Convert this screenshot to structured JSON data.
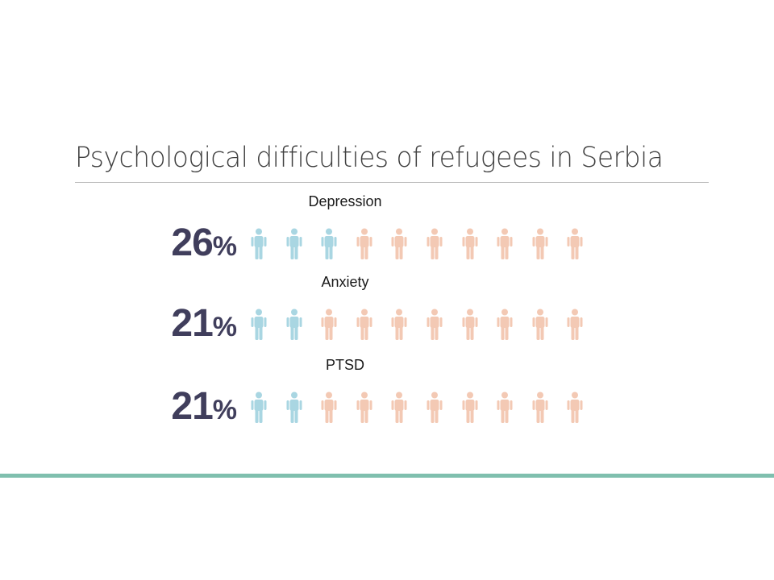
{
  "slide": {
    "title": "Psychological difficulties of refugees in Serbia"
  },
  "colors": {
    "highlight_person": "#a9d6e2",
    "base_person": "#f3c9b4",
    "percent_text": "#403e5c",
    "accent_line": "#7fbfae"
  },
  "chart_data": {
    "type": "pictograph",
    "title": "Psychological difficulties of refugees in Serbia",
    "icons_per_row": 10,
    "icon": "person-icon",
    "series": [
      {
        "name": "Depression",
        "value": 26,
        "value_label": "26",
        "unit": "%",
        "highlighted_icons": 3
      },
      {
        "name": "Anxiety",
        "value": 21,
        "value_label": "21",
        "unit": "%",
        "highlighted_icons": 2
      },
      {
        "name": "PTSD",
        "value": 21,
        "value_label": "21",
        "unit": "%",
        "highlighted_icons": 2
      }
    ]
  }
}
